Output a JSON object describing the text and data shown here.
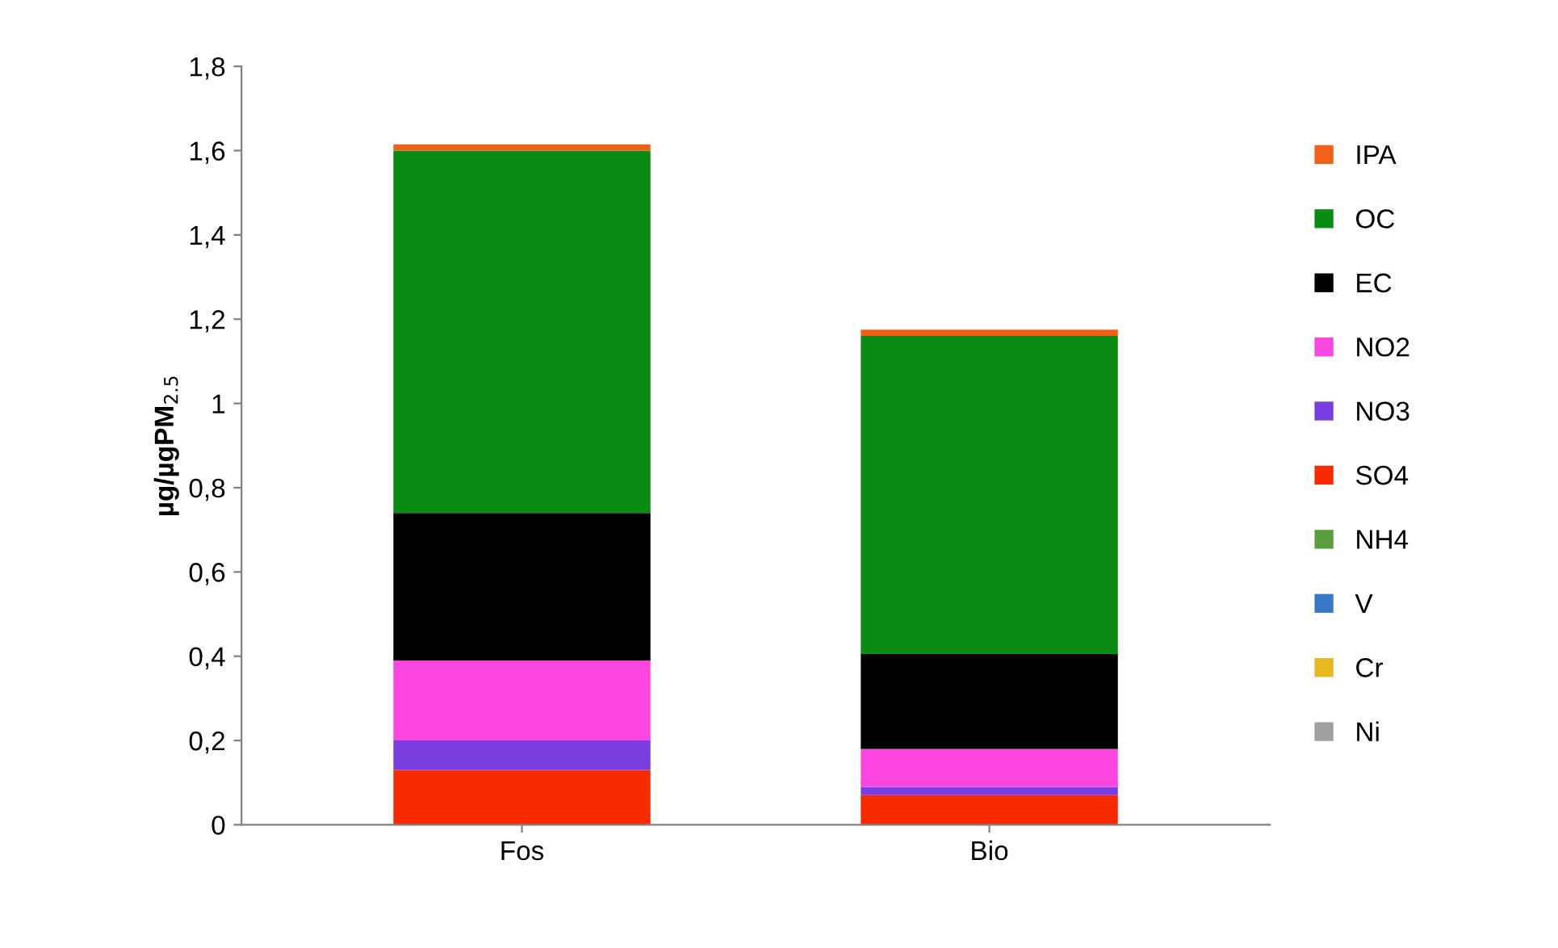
{
  "chart_data": {
    "type": "bar",
    "stacked": true,
    "ylabel": "µg/µgPM$_{2.5}$",
    "categories": [
      "Fos",
      "Bio"
    ],
    "ylim": [
      0,
      1.8
    ],
    "yticks": [
      0,
      {
        "value": 0.2,
        "label": "0,2"
      },
      {
        "value": 0.4,
        "label": "0,4"
      },
      {
        "value": 0.6,
        "label": "0,6"
      },
      {
        "value": 0.8,
        "label": "0,8"
      },
      1,
      {
        "value": 1.2,
        "label": "1,2"
      },
      {
        "value": 1.4,
        "label": "1,4"
      },
      {
        "value": 1.6,
        "label": "1,6"
      },
      {
        "value": 1.8,
        "label": "1,8"
      }
    ],
    "grid": false,
    "legend": "right",
    "series": [
      {
        "name": "Ni",
        "color": "#a0a0a0",
        "values": [
          0,
          0
        ]
      },
      {
        "name": "Cr",
        "color": "#e8b820",
        "values": [
          0,
          0
        ]
      },
      {
        "name": "V",
        "color": "#3a78c8",
        "values": [
          0,
          0
        ]
      },
      {
        "name": "NH4",
        "color": "#5a9e40",
        "values": [
          0,
          0
        ]
      },
      {
        "name": "SO4",
        "color": "#fa2a00",
        "values": [
          0.13,
          0.07
        ]
      },
      {
        "name": "NO3",
        "color": "#7a3ee0",
        "values": [
          0.07,
          0.02
        ]
      },
      {
        "name": "NO2",
        "color": "#fc46e0",
        "values": [
          0.19,
          0.09
        ]
      },
      {
        "name": "EC",
        "color": "#000000",
        "values": [
          0.35,
          0.225
        ]
      },
      {
        "name": "OC",
        "color": "#0a8c12",
        "values": [
          0.86,
          0.755
        ]
      },
      {
        "name": "IPA",
        "color": "#f06018",
        "values": [
          0.015,
          0.015
        ]
      }
    ]
  }
}
